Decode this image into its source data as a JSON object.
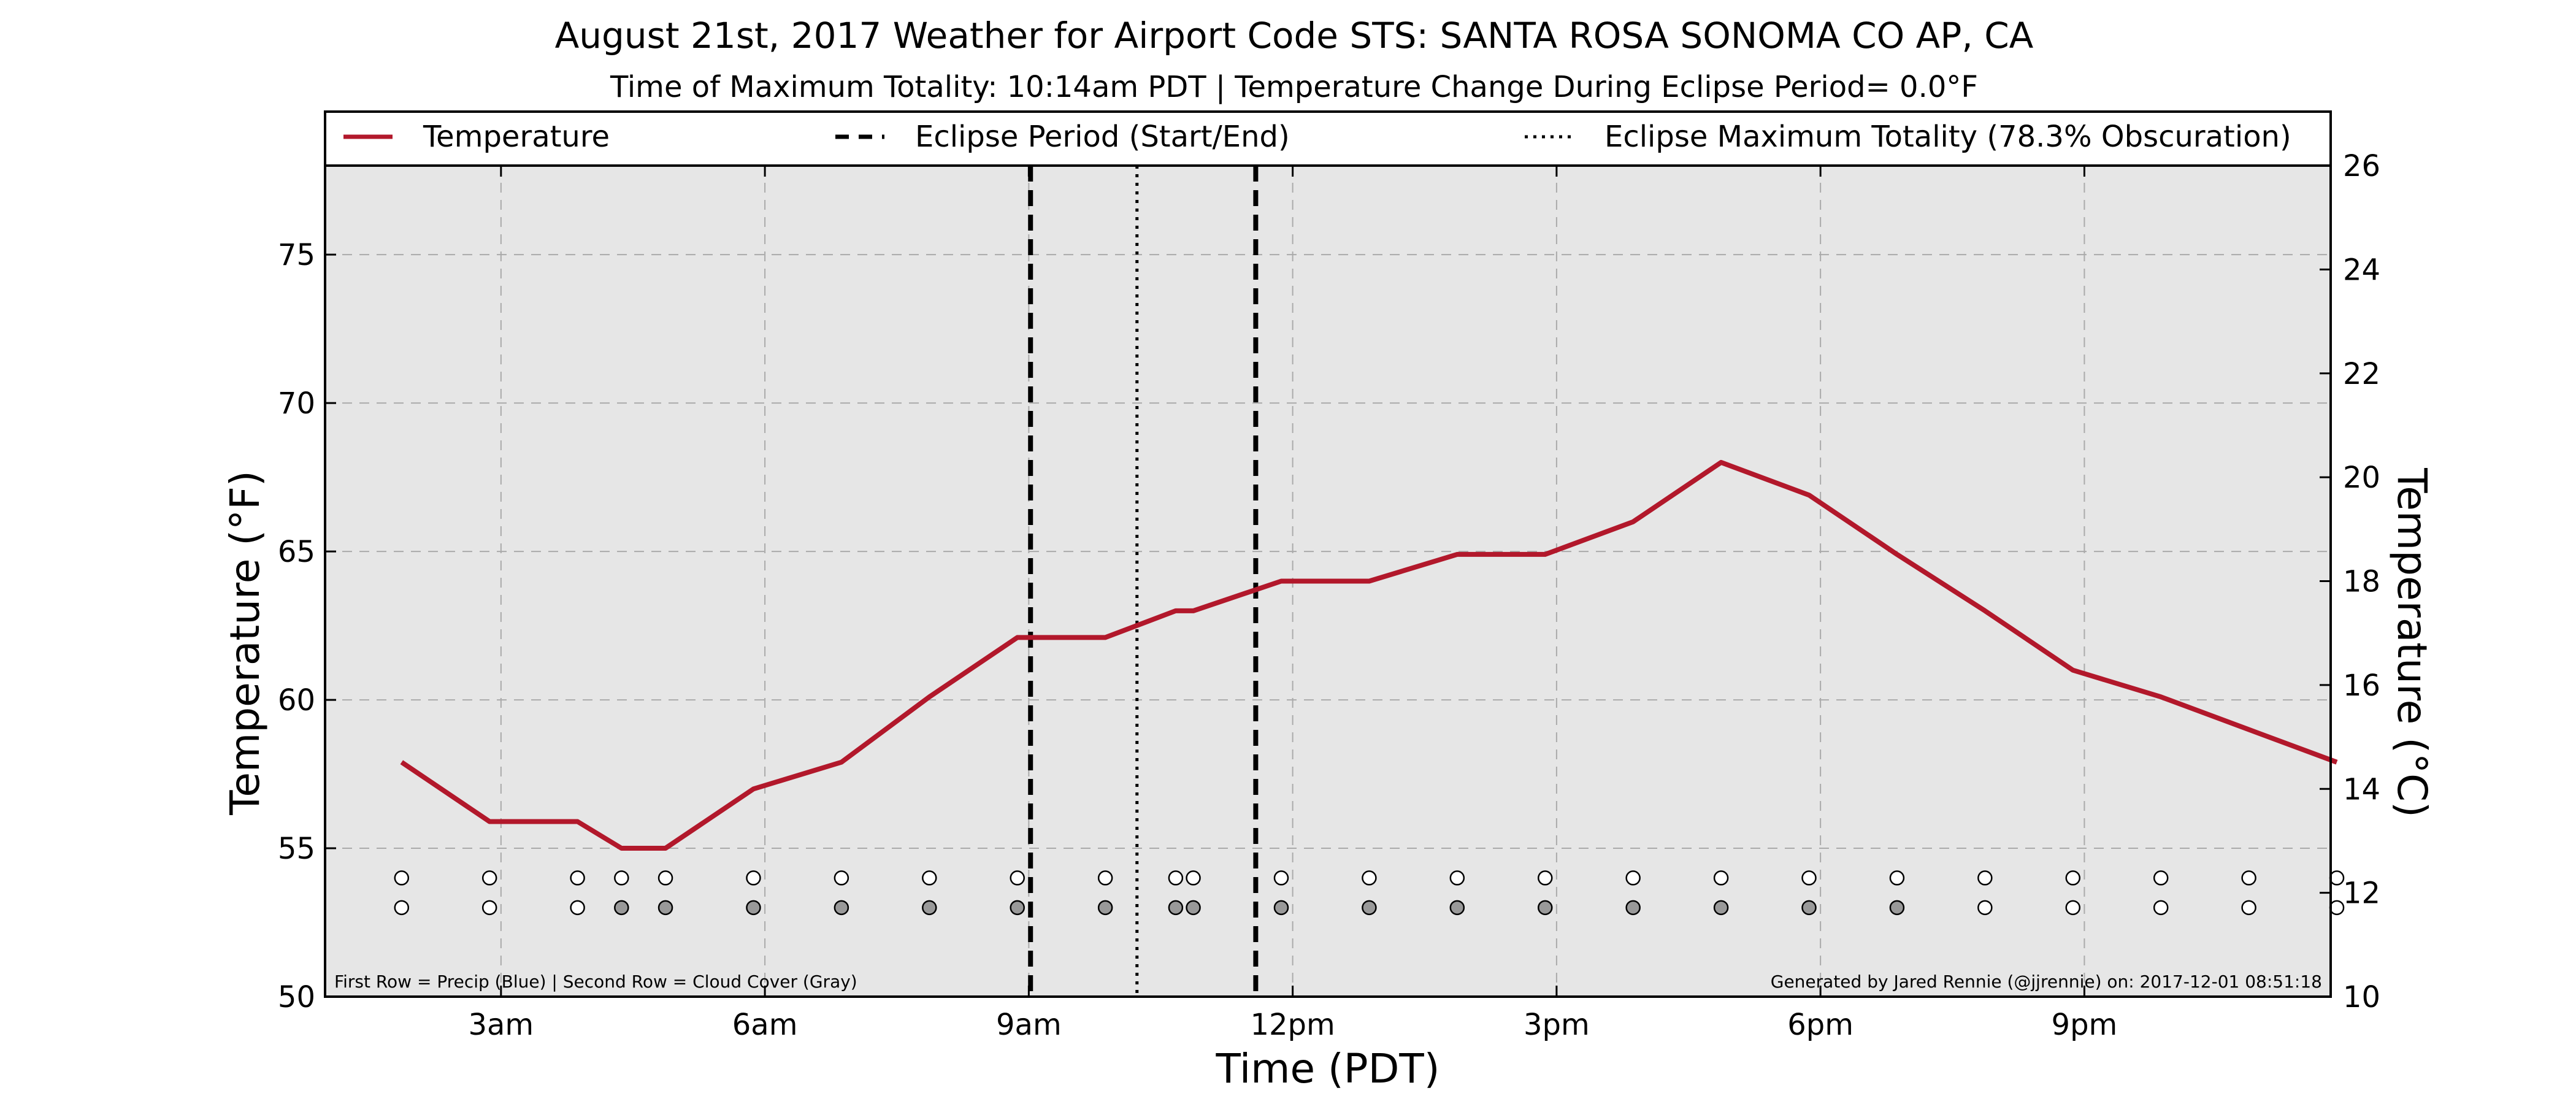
{
  "chart_data": {
    "type": "line",
    "title": "August 21st, 2017 Weather for Airport Code STS: SANTA ROSA SONOMA CO AP, CA",
    "subtitle": "Time of Maximum Totality: 10:14am PDT | Temperature Change During Eclipse Period= 0.0°F",
    "xlabel": "Time (PDT)",
    "ylabel": "Temperature (°F)",
    "ylabel_right": "Temperature (°C)",
    "xlim": [
      1,
      23.8
    ],
    "ylim": [
      50,
      78
    ],
    "ylim_right": [
      10,
      26
    ],
    "x_ticks": [
      {
        "x": 3,
        "label": "3am"
      },
      {
        "x": 6,
        "label": "6am"
      },
      {
        "x": 9,
        "label": "9am"
      },
      {
        "x": 12,
        "label": "12pm"
      },
      {
        "x": 15,
        "label": "3pm"
      },
      {
        "x": 18,
        "label": "6pm"
      },
      {
        "x": 21,
        "label": "9pm"
      }
    ],
    "y_ticks": [
      50,
      55,
      60,
      65,
      70,
      75
    ],
    "y_ticks_right": [
      10,
      12,
      14,
      16,
      18,
      20,
      22,
      24,
      26
    ],
    "grid": true,
    "series": [
      {
        "name": "Temperature",
        "color": "#b2182b",
        "points": [
          {
            "x": 1.87,
            "y": 57.9
          },
          {
            "x": 2.87,
            "y": 55.9
          },
          {
            "x": 3.87,
            "y": 55.9
          },
          {
            "x": 4.37,
            "y": 55.0
          },
          {
            "x": 4.87,
            "y": 55.0
          },
          {
            "x": 5.87,
            "y": 57.0
          },
          {
            "x": 6.87,
            "y": 57.9
          },
          {
            "x": 7.87,
            "y": 60.1
          },
          {
            "x": 8.87,
            "y": 62.1
          },
          {
            "x": 9.87,
            "y": 62.1
          },
          {
            "x": 10.67,
            "y": 63.0
          },
          {
            "x": 10.87,
            "y": 63.0
          },
          {
            "x": 11.87,
            "y": 64.0
          },
          {
            "x": 12.87,
            "y": 64.0
          },
          {
            "x": 13.87,
            "y": 64.9
          },
          {
            "x": 14.87,
            "y": 64.9
          },
          {
            "x": 15.87,
            "y": 66.0
          },
          {
            "x": 16.87,
            "y": 68.0
          },
          {
            "x": 17.87,
            "y": 66.9
          },
          {
            "x": 18.87,
            "y": 64.9
          },
          {
            "x": 19.87,
            "y": 63.0
          },
          {
            "x": 20.87,
            "y": 61.0
          },
          {
            "x": 21.87,
            "y": 60.1
          },
          {
            "x": 22.87,
            "y": 59.0
          },
          {
            "x": 23.87,
            "y": 57.9
          }
        ]
      }
    ],
    "eclipse_start": 9.02,
    "eclipse_end": 11.58,
    "eclipse_max": 10.23,
    "legend": {
      "placement": "top",
      "entries": [
        {
          "label": "Temperature",
          "style": "solid",
          "color": "#b2182b"
        },
        {
          "label": "Eclipse Period (Start/End)",
          "style": "dashed",
          "color": "#000000"
        },
        {
          "label": "Eclipse Maximum Totality (78.3% Obscuration)",
          "style": "dotted",
          "color": "#000000"
        }
      ]
    },
    "indicator_rows": {
      "precip_row_y": 54,
      "cloud_row_y": 53,
      "precip_color": "#ffffff",
      "cloud_gray_color": "#999999",
      "times": [
        1.87,
        2.87,
        3.87,
        4.37,
        4.87,
        5.87,
        6.87,
        7.87,
        8.87,
        9.87,
        10.67,
        10.87,
        11.87,
        12.87,
        13.87,
        14.87,
        15.87,
        16.87,
        17.87,
        18.87,
        19.87,
        20.87,
        21.87,
        22.87,
        23.87
      ],
      "cloud_gray": [
        false,
        false,
        false,
        true,
        true,
        true,
        true,
        true,
        true,
        true,
        true,
        true,
        true,
        true,
        true,
        true,
        true,
        true,
        true,
        true,
        false,
        false,
        false,
        false,
        false
      ]
    },
    "annotations": {
      "bottom_left": "First Row = Precip (Blue) | Second Row = Cloud Cover (Gray)",
      "bottom_right": "Generated by Jared Rennie (@jjrennie) on: 2017-12-01 08:51:18"
    }
  }
}
